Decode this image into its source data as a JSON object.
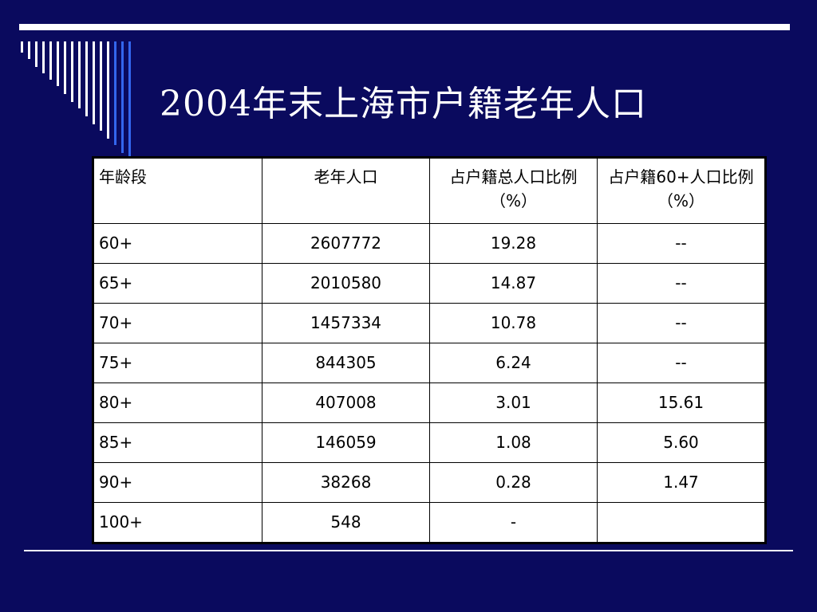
{
  "slide": {
    "title": "2004年末上海市户籍老年人口"
  },
  "table": {
    "headers": [
      "年龄段",
      "老年人口",
      "占户籍总人口比例（%）",
      "占户籍60+人口比例（%）"
    ],
    "rows": [
      [
        "60+",
        "2607772",
        "19.28",
        "--"
      ],
      [
        "65+",
        "2010580",
        "14.87",
        "--"
      ],
      [
        "70+",
        "1457334",
        "10.78",
        "--"
      ],
      [
        "75+",
        "844305",
        "6.24",
        "--"
      ],
      [
        "80+",
        "407008",
        "3.01",
        "15.61"
      ],
      [
        "85+",
        "146059",
        "1.08",
        "5.60"
      ],
      [
        "90+",
        "38268",
        "0.28",
        "1.47"
      ],
      [
        "100+",
        "548",
        "-",
        ""
      ]
    ]
  },
  "colors": {
    "background": "#0a0a5e",
    "accent_blue": "#1e5ad8",
    "rule": "#ffffff",
    "table_bg": "#ffffff"
  }
}
